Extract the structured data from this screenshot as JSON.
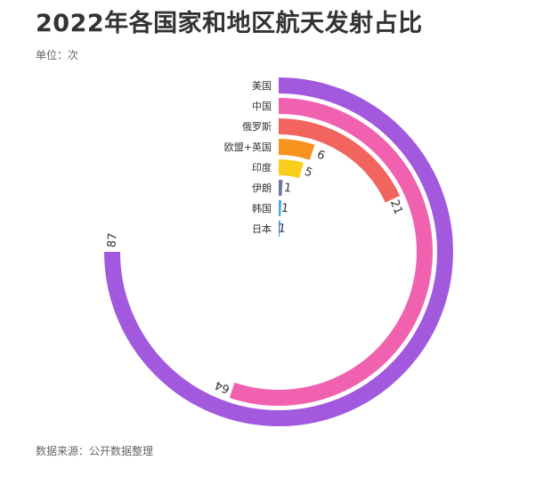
{
  "title": "2022年各国家和地区航天发射占比",
  "unit": "单位：次",
  "source": "数据来源：公开数据整理",
  "chart_data": {
    "type": "bar",
    "subtype": "radial-bar",
    "title": "2022年各国家和地区航天发射占比",
    "unit": "单位：次",
    "categories": [
      "美国",
      "中国",
      "俄罗斯",
      "欧盟+英国",
      "印度",
      "伊朗",
      "韩国",
      "日本"
    ],
    "values": [
      87,
      64,
      21,
      6,
      5,
      1,
      1,
      1
    ],
    "colors": [
      "#a259dd",
      "#f062b0",
      "#f2655f",
      "#f7931e",
      "#f9cd1a",
      "#6b7a99",
      "#45a9e0",
      "#3c8fd6"
    ],
    "max": 116,
    "grid": false,
    "legend": "none"
  }
}
